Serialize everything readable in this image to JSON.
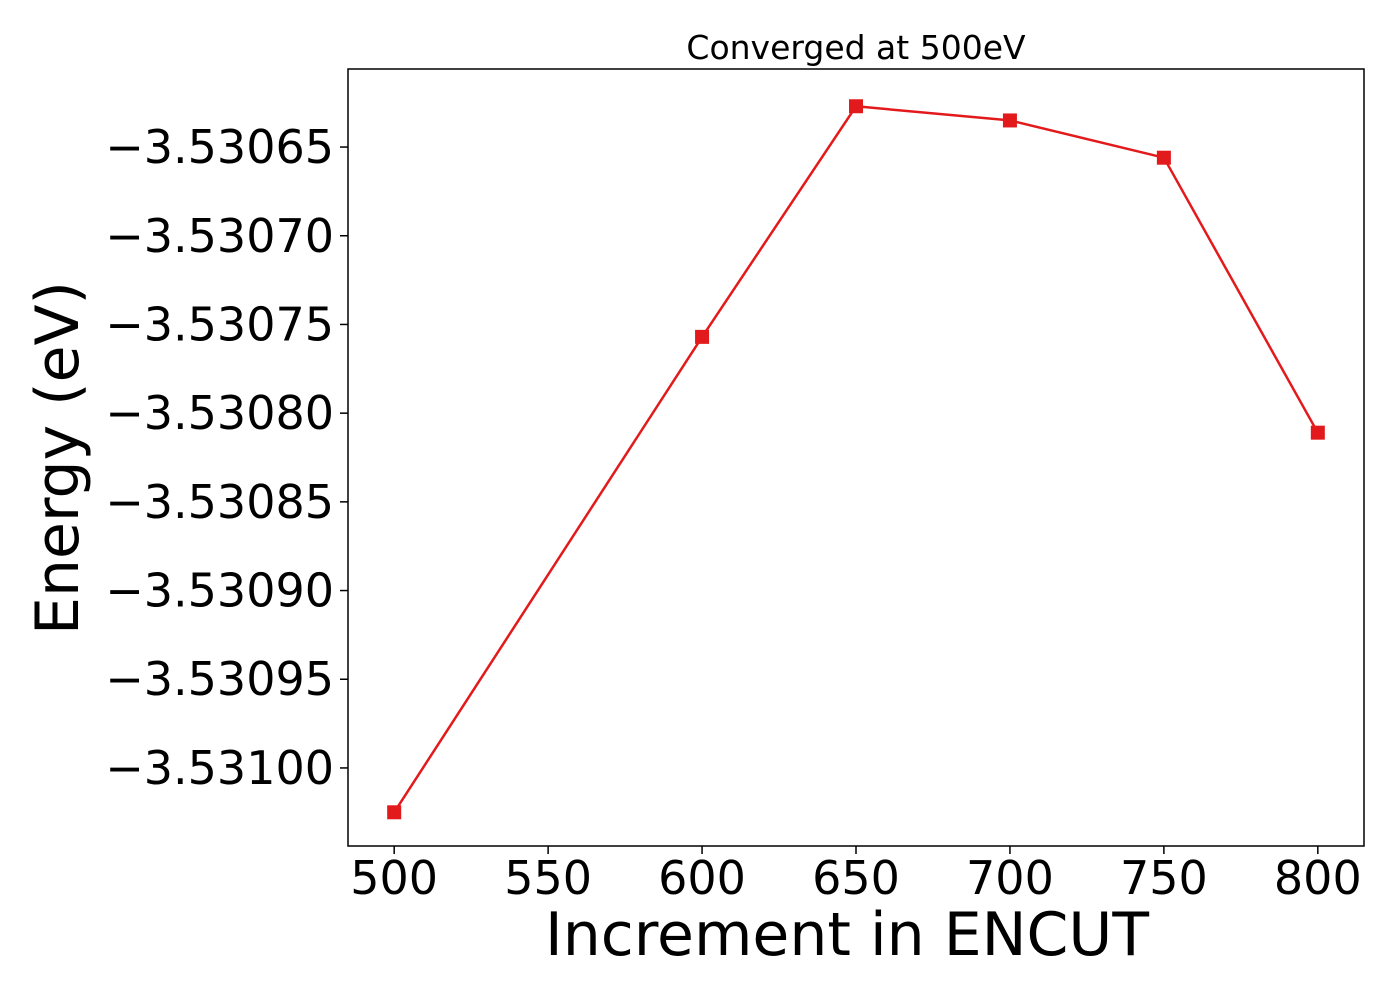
{
  "chart_data": {
    "type": "line",
    "title": "Converged at 500eV",
    "xlabel": "Increment in ENCUT",
    "ylabel": "Energy (eV)",
    "x": [
      500,
      600,
      650,
      700,
      750,
      800
    ],
    "series": [
      {
        "values": [
          -3.531025,
          -3.530757,
          -3.530627,
          -3.530635,
          -3.530656,
          -3.530811
        ],
        "color": "#e31a1c",
        "marker": "square"
      }
    ],
    "xticks": [
      500,
      550,
      600,
      650,
      700,
      750,
      800
    ],
    "xtick_labels": [
      "500",
      "550",
      "600",
      "650",
      "700",
      "750",
      "800"
    ],
    "yticks": [
      -3.53065,
      -3.5307,
      -3.53075,
      -3.5308,
      -3.53085,
      -3.5309,
      -3.53095,
      -3.531
    ],
    "ytick_labels": [
      "−3.53065",
      "−3.53070",
      "−3.53075",
      "−3.53080",
      "−3.53085",
      "−3.53090",
      "−3.53095",
      "−3.53100"
    ],
    "xlim": [
      485,
      815
    ],
    "ylim": [
      -3.531044,
      -3.530606
    ],
    "grid": false,
    "legend": "none"
  }
}
